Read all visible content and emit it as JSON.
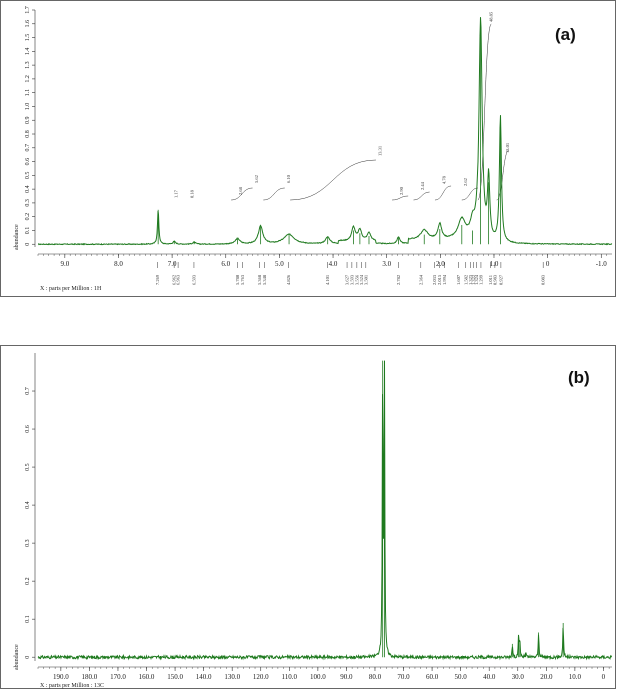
{
  "colors": {
    "spectrum": "#1f7a1f",
    "axis": "#333333",
    "frame": "#555555"
  },
  "chart_data": [
    {
      "type": "line",
      "panel_label": "(a)",
      "ylabel": "abundance",
      "xlabel": "X : parts per Million : 1H",
      "xlim": [
        9.5,
        -1.2
      ],
      "ylim": [
        -0.02,
        1.7
      ],
      "x_ticks": [
        "9.0",
        "8.0",
        "7.0",
        "6.0",
        "5.0",
        "4.0",
        "3.0",
        "2.0",
        "1.0",
        "0",
        "-1.0"
      ],
      "x_tick_values": [
        9,
        8,
        7,
        6,
        5,
        4,
        3,
        2,
        1,
        0,
        -1
      ],
      "y_ticks": [
        "0",
        "0.1",
        "0.2",
        "0.3",
        "0.4",
        "0.5",
        "0.6",
        "0.7",
        "0.8",
        "0.9",
        "1.0",
        "1.1",
        "1.2",
        "1.3",
        "1.4",
        "1.5",
        "1.6",
        "1.7"
      ],
      "y_tick_values": [
        0,
        0.1,
        0.2,
        0.3,
        0.4,
        0.5,
        0.6,
        0.7,
        0.8,
        0.9,
        1.0,
        1.1,
        1.2,
        1.3,
        1.4,
        1.5,
        1.6,
        1.7
      ],
      "peaks": [
        {
          "x": 7.26,
          "h": 0.25,
          "w": 0.015
        },
        {
          "x": 6.96,
          "h": 0.02,
          "w": 0.03
        },
        {
          "x": 6.59,
          "h": 0.015,
          "w": 0.03
        },
        {
          "x": 5.78,
          "h": 0.04,
          "w": 0.05
        },
        {
          "x": 5.35,
          "h": 0.13,
          "w": 0.05
        },
        {
          "x": 4.82,
          "h": 0.07,
          "w": 0.12
        },
        {
          "x": 4.1,
          "h": 0.05,
          "w": 0.05
        },
        {
          "x": 3.62,
          "h": 0.1,
          "w": 0.04
        },
        {
          "x": 3.5,
          "h": 0.08,
          "w": 0.04
        },
        {
          "x": 3.33,
          "h": 0.06,
          "w": 0.04
        },
        {
          "x": 2.78,
          "h": 0.05,
          "w": 0.03
        },
        {
          "x": 2.3,
          "h": 0.07,
          "w": 0.08
        },
        {
          "x": 2.01,
          "h": 0.11,
          "w": 0.04
        },
        {
          "x": 1.6,
          "h": 0.14,
          "w": 0.08
        },
        {
          "x": 1.4,
          "h": 0.1,
          "w": 0.05
        },
        {
          "x": 1.25,
          "h": 1.62,
          "w": 0.035
        },
        {
          "x": 1.1,
          "h": 0.45,
          "w": 0.025
        },
        {
          "x": 0.88,
          "h": 0.92,
          "w": 0.022
        }
      ],
      "integrations": [
        "1.17",
        "0.18",
        "2.68",
        "5.62",
        "6.10",
        "13.31",
        "2.90",
        "2.44",
        "4.78",
        "2.62",
        "48.85",
        "13.01"
      ],
      "peak_labels": [
        "7.269",
        "6.962",
        "6.963",
        "6.593",
        "5.780",
        "5.763",
        "5.368",
        "5.348",
        "4.826",
        "4.101",
        "3.627",
        "3.593",
        "3.556",
        "3.524",
        "3.501",
        "2.782",
        "2.364",
        "2.033",
        "2.015",
        "1.994",
        "1.607",
        "1.582",
        "1.323",
        "1.322",
        "1.324",
        "1.299",
        "1.011",
        "0.983",
        "0.927",
        "0.083"
      ]
    },
    {
      "type": "line",
      "panel_label": "(b)",
      "ylabel": "abundance",
      "xlabel": "X : parts per Million : 13C",
      "xlim": [
        198,
        -3
      ],
      "ylim": [
        -0.01,
        0.8
      ],
      "x_ticks": [
        "190.0",
        "180.0",
        "170.0",
        "160.0",
        "150.0",
        "140.0",
        "130.0",
        "120.0",
        "110.0",
        "100.0",
        "90.0",
        "80.0",
        "70.0",
        "60.0",
        "50.0",
        "40.0",
        "30.0",
        "20.0",
        "10.0",
        "0"
      ],
      "x_tick_values": [
        190,
        180,
        170,
        160,
        150,
        140,
        130,
        120,
        110,
        100,
        90,
        80,
        70,
        60,
        50,
        40,
        30,
        20,
        10,
        0
      ],
      "y_ticks": [
        "0",
        "0.1",
        "0.2",
        "0.3",
        "0.4",
        "0.5",
        "0.6",
        "0.7"
      ],
      "y_tick_values": [
        0,
        0.1,
        0.2,
        0.3,
        0.4,
        0.5,
        0.6,
        0.7
      ],
      "peaks": [
        {
          "x": 77.3,
          "h": 0.78,
          "w": 0.15
        },
        {
          "x": 76.7,
          "h": 0.78,
          "w": 0.15
        },
        {
          "x": 31.9,
          "h": 0.035,
          "w": 0.15
        },
        {
          "x": 29.7,
          "h": 0.055,
          "w": 0.15
        },
        {
          "x": 29.3,
          "h": 0.045,
          "w": 0.15
        },
        {
          "x": 27.2,
          "h": 0.012,
          "w": 0.15
        },
        {
          "x": 22.7,
          "h": 0.065,
          "w": 0.15
        },
        {
          "x": 14.1,
          "h": 0.09,
          "w": 0.15
        }
      ]
    }
  ]
}
